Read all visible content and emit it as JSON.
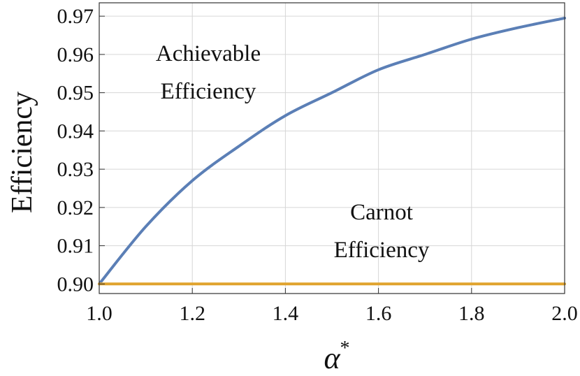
{
  "chart_data": {
    "type": "line",
    "title": "",
    "xlabel": "α",
    "xlabel_superscript": "*",
    "ylabel": "Efficiency",
    "xlim": [
      1.0,
      2.0
    ],
    "ylim": [
      0.8975,
      0.9735
    ],
    "x_ticks": [
      "1.0",
      "1.2",
      "1.4",
      "1.6",
      "1.8",
      "2.0"
    ],
    "y_ticks": [
      "0.90",
      "0.91",
      "0.92",
      "0.93",
      "0.94",
      "0.95",
      "0.96",
      "0.97"
    ],
    "grid": true,
    "x": [
      1.0,
      1.1,
      1.2,
      1.3,
      1.4,
      1.5,
      1.6,
      1.7,
      1.8,
      1.9,
      2.0
    ],
    "series": [
      {
        "values": [
          0.9,
          0.915,
          0.927,
          0.936,
          0.944,
          0.95,
          0.956,
          0.96,
          0.964,
          0.967,
          0.9695
        ],
        "color": "#5b7fb6"
      },
      {
        "values": [
          0.9,
          0.9,
          0.9,
          0.9,
          0.9,
          0.9,
          0.9,
          0.9,
          0.9,
          0.9,
          0.9
        ],
        "color": "#e0a32e"
      }
    ],
    "annotations": [
      {
        "lines": [
          "Achievable",
          "Efficiency"
        ]
      },
      {
        "lines": [
          "Carnot",
          "Efficiency"
        ]
      }
    ]
  }
}
